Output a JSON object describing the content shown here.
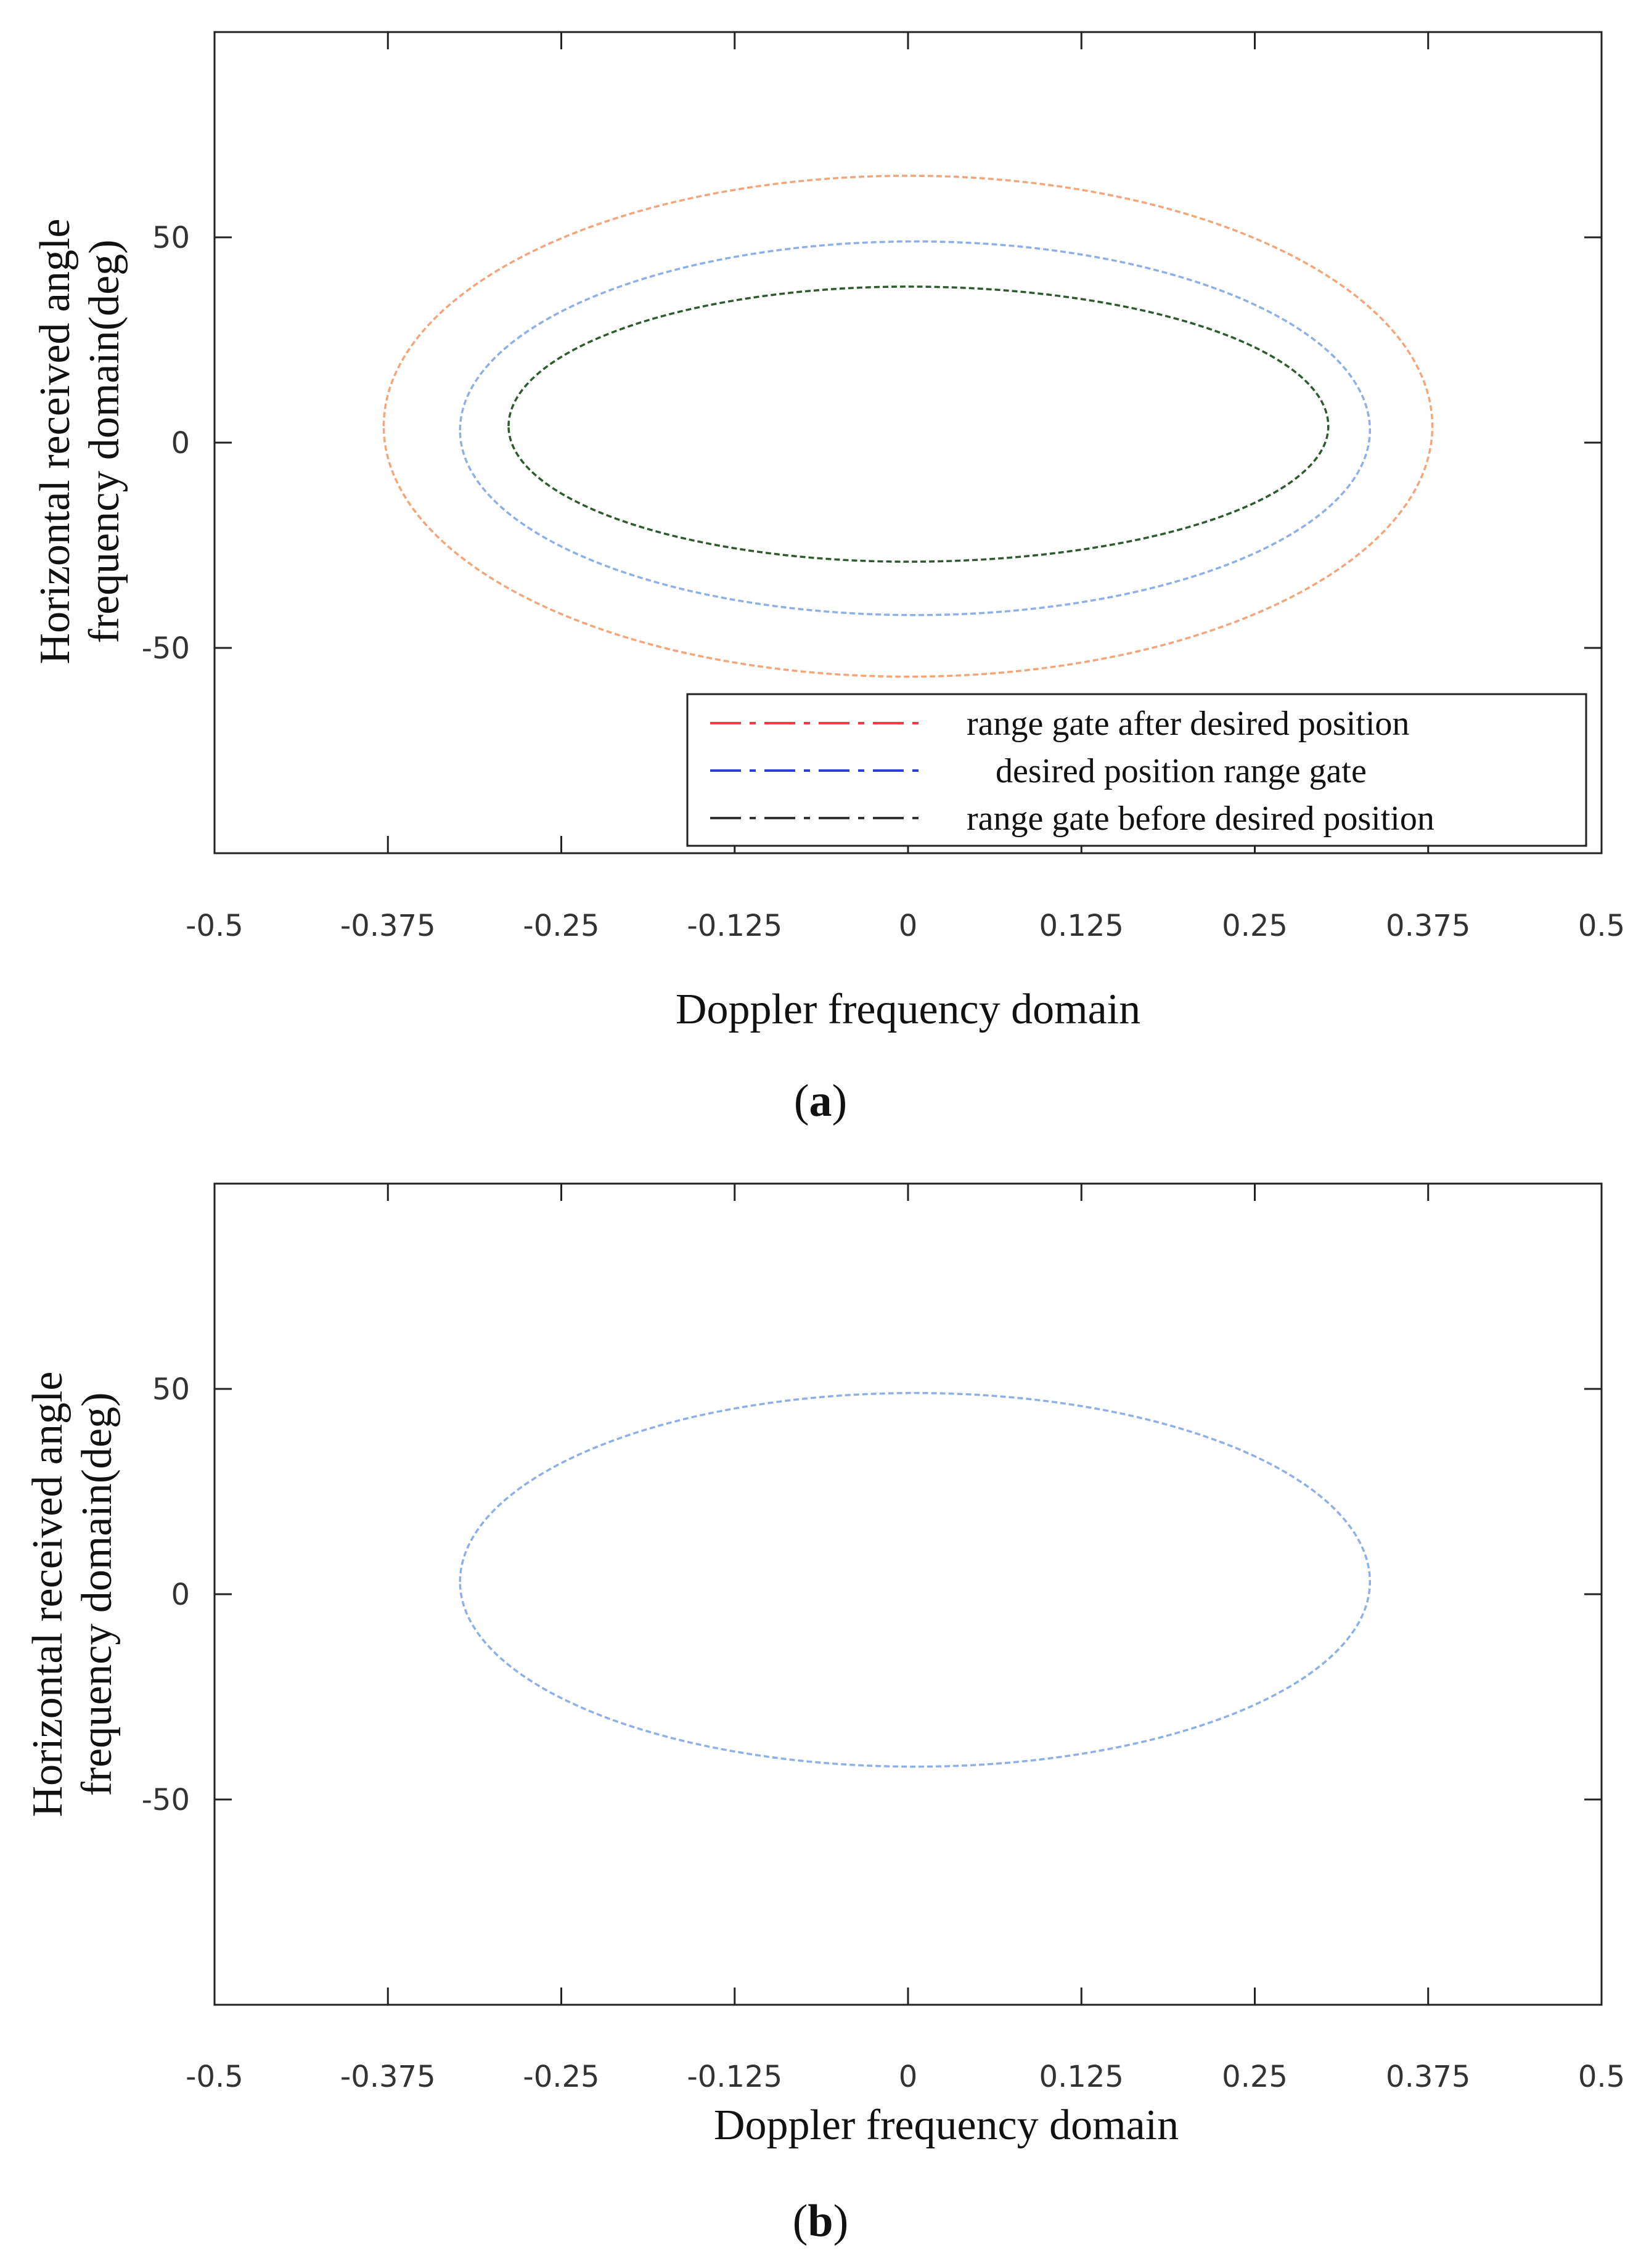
{
  "chart_data": [
    {
      "panel": "a",
      "type": "line",
      "panel_label": {
        "open": "(",
        "letter": "a",
        "close": ")"
      },
      "xlabel": "Doppler frequency domain",
      "ylabel_lines": [
        "Horizontal received angle",
        "frequency domain(deg)"
      ],
      "xlim": [
        -0.5,
        0.5
      ],
      "ylim": [
        -100,
        100
      ],
      "xticks": [
        -0.5,
        -0.375,
        -0.25,
        -0.125,
        0,
        0.125,
        0.25,
        0.375,
        0.5
      ],
      "xtick_labels": [
        "-0.5",
        "-0.375",
        "-0.25",
        "-0.125",
        "0",
        "0.125",
        "0.25",
        "0.375",
        "0.5"
      ],
      "yticks": [
        50,
        0,
        -50
      ],
      "ytick_labels": [
        "50",
        "0",
        "-50"
      ],
      "legend_position": "lower-right",
      "series": [
        {
          "name": "range gate after desired position",
          "color": "#f4a67a",
          "legend_color": "#f03c3c",
          "ellipse": {
            "x_left": -0.378,
            "x_right": 0.378,
            "x_top": 0.0,
            "y_top": 65,
            "y_bottom": -57,
            "y_mid": 4
          }
        },
        {
          "name": "desired position range gate",
          "color": "#8fb0e6",
          "legend_color": "#2d3dd8",
          "ellipse": {
            "x_left": -0.323,
            "x_right": 0.333,
            "x_top": 0.005,
            "y_top": 49,
            "y_bottom": -42,
            "y_mid": 3
          }
        },
        {
          "name": "range gate before desired position",
          "color": "#2f5a2f",
          "legend_color": "#333333",
          "ellipse": {
            "x_left": -0.288,
            "x_right": 0.303,
            "x_top": 0.0,
            "y_top": 38,
            "y_bottom": -29,
            "y_mid": 4
          }
        }
      ]
    },
    {
      "panel": "b",
      "type": "line",
      "panel_label": {
        "open": "(",
        "letter": "b",
        "close": ")"
      },
      "xlabel": "Doppler frequency domain",
      "ylabel_lines": [
        "Horizontal received angle",
        "frequency domain(deg)"
      ],
      "xlim": [
        -0.5,
        0.5
      ],
      "ylim": [
        -100,
        100
      ],
      "xticks": [
        -0.5,
        -0.375,
        -0.25,
        -0.125,
        0,
        0.125,
        0.25,
        0.375,
        0.5
      ],
      "xtick_labels": [
        "-0.5",
        "-0.375",
        "-0.25",
        "-0.125",
        "0",
        "0.125",
        "0.25",
        "0.375",
        "0.5"
      ],
      "yticks": [
        50,
        0,
        -50
      ],
      "ytick_labels": [
        "50",
        "0",
        "-50"
      ],
      "series": [
        {
          "name": "desired position range gate",
          "color": "#8fb0e6",
          "ellipse": {
            "x_left": -0.323,
            "x_right": 0.333,
            "x_top": 0.005,
            "y_top": 49,
            "y_bottom": -42,
            "y_mid": 3
          }
        }
      ]
    }
  ]
}
